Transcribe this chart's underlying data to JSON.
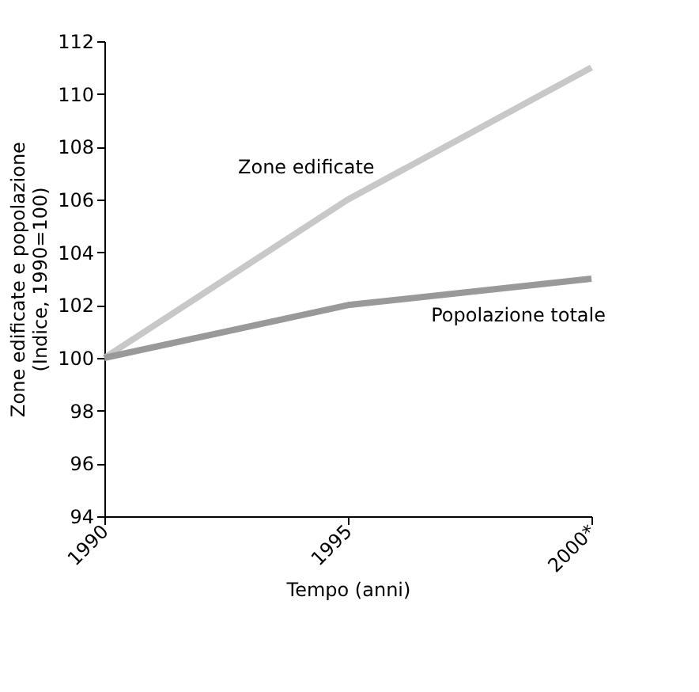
{
  "chart_data": {
    "type": "line",
    "x": [
      1990,
      1995,
      2000
    ],
    "series": [
      {
        "name": "Zone edificate",
        "color": "#c8c8c8",
        "values": [
          100,
          106,
          111
        ]
      },
      {
        "name": "Popolazione totale",
        "color": "#999999",
        "values": [
          100,
          102,
          103
        ]
      }
    ],
    "xlabel": "Tempo (anni)",
    "ylabel": "Zone edificate e popolazione\n(Indice, 1990=100)",
    "xlim": [
      1990,
      2000
    ],
    "xticks": [
      1990,
      1995,
      {
        "value": 2000,
        "label": "2000*"
      }
    ],
    "ylim": [
      94,
      112
    ],
    "yticks": [
      94,
      96,
      98,
      100,
      102,
      104,
      106,
      108,
      110,
      112
    ],
    "grid": false,
    "legend": false,
    "marker": "none",
    "line_style": "solid"
  }
}
